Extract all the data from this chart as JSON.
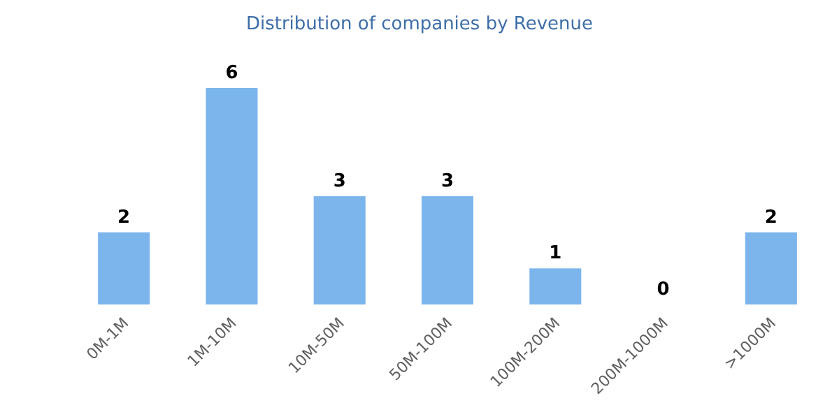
{
  "chart_data": {
    "type": "bar",
    "title": "Distribution of companies by Revenue",
    "categories": [
      "0M-1M",
      "1M-10M",
      "10M-50M",
      "50M-100M",
      "100M-200M",
      "200M-1000M",
      ">1000M"
    ],
    "values": [
      2,
      6,
      3,
      3,
      1,
      0,
      2
    ],
    "color": "#7cb5ec",
    "data_labels": true
  }
}
